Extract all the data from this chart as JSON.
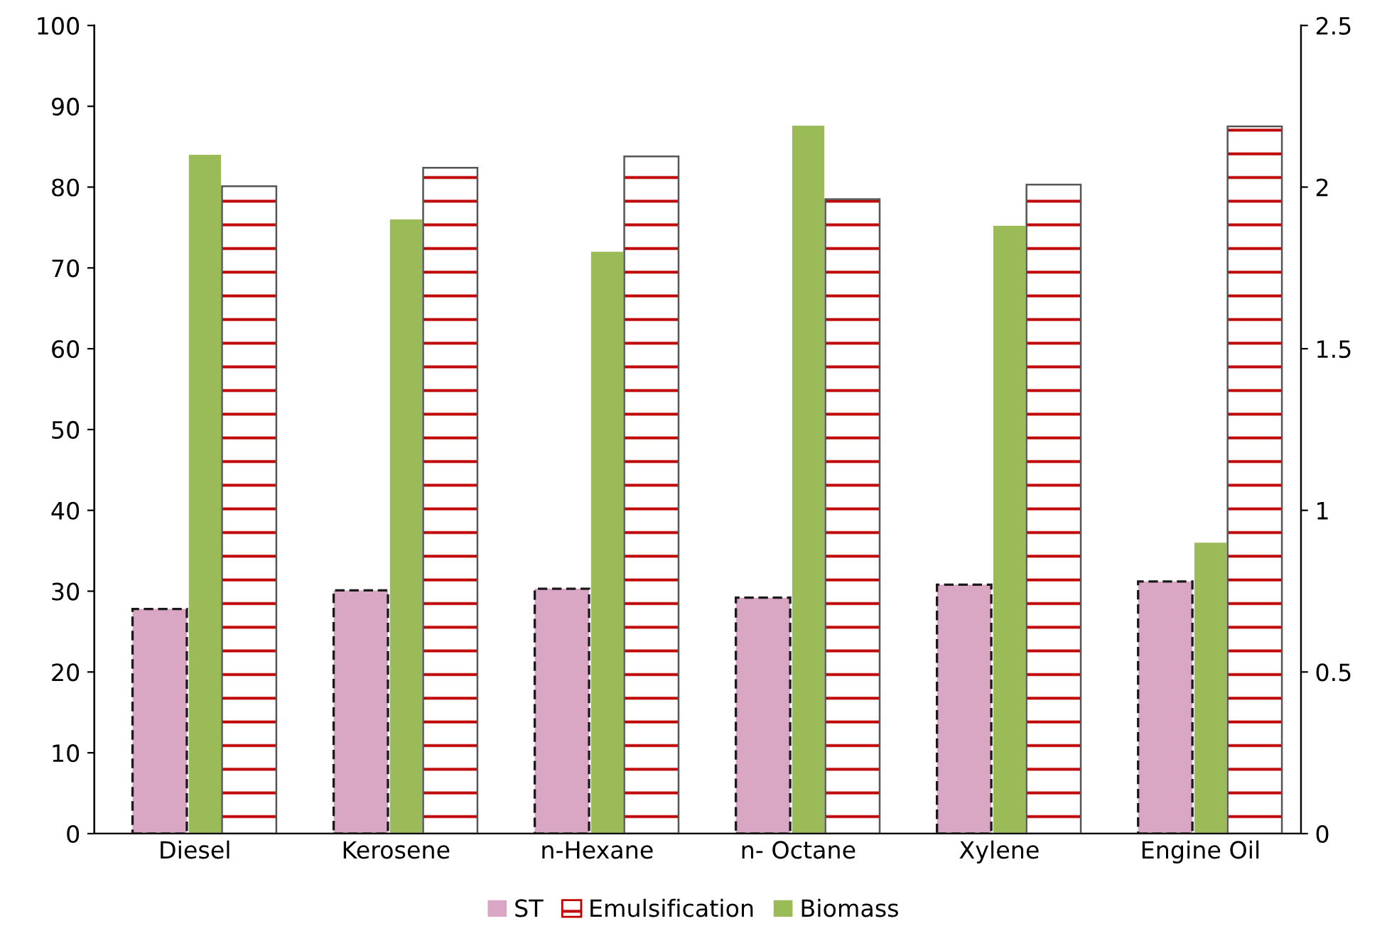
{
  "chart_data": {
    "type": "bar",
    "categories": [
      "Diesel",
      "Kerosene",
      "n-Hexane",
      "n- Octane",
      "Xylene",
      "Engine Oil"
    ],
    "series": [
      {
        "name": "ST",
        "color": "#d9a6c4",
        "values": [
          27.8,
          30.1,
          30.3,
          29.2,
          30.8,
          31.2
        ]
      },
      {
        "name": "Emulsification",
        "color": "#ffffff",
        "values": [
          80.1,
          82.4,
          83.8,
          78.5,
          80.3,
          87.5
        ]
      },
      {
        "name": "Biomass",
        "color": "#9bbb59",
        "axis": "y2",
        "values": [
          2.1,
          1.9,
          1.8,
          2.19,
          1.88,
          0.9
        ]
      }
    ],
    "ylim": [
      0,
      100
    ],
    "yticks": [
      0,
      10,
      20,
      30,
      40,
      50,
      60,
      70,
      80,
      90,
      100
    ],
    "y2lim": [
      0,
      2.5
    ],
    "y2ticks": [
      0,
      0.5,
      1,
      1.5,
      2,
      2.5
    ],
    "grid": false,
    "legend": "bottom"
  }
}
